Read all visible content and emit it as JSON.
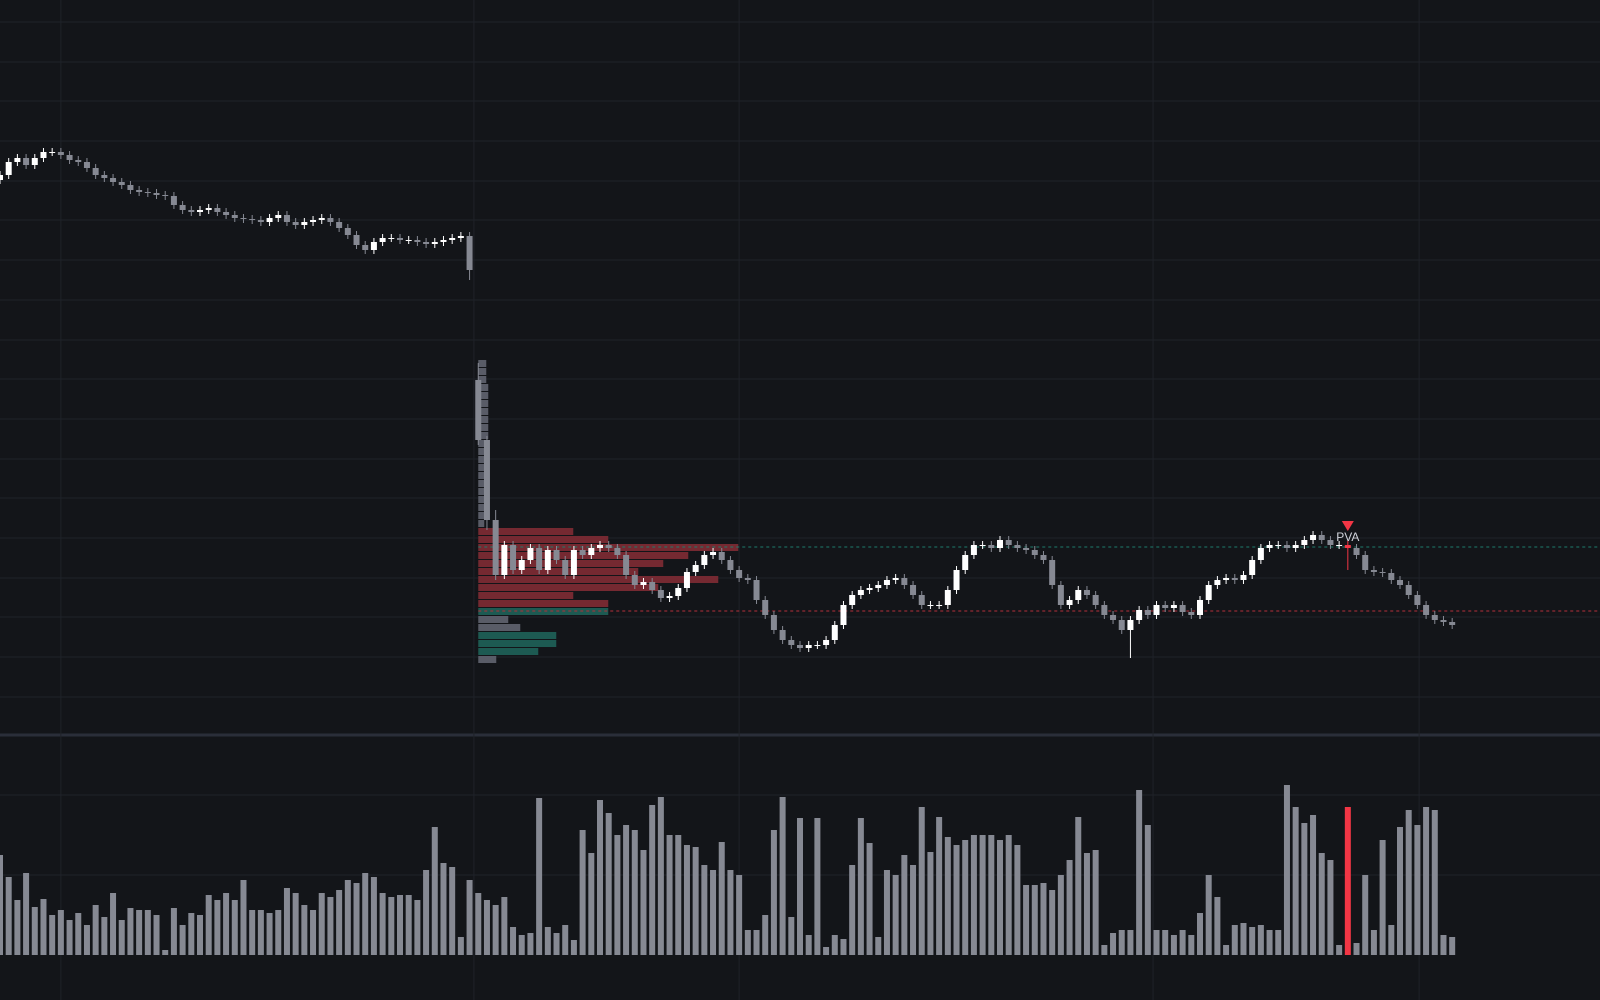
{
  "chart_data": {
    "type": "candlestick",
    "xlim": [
      0,
      184
    ],
    "xticks": [
      7,
      54.5,
      85,
      132.6,
      163.2
    ],
    "ylim": [
      267,
      1000
    ],
    "yticks": [
      978,
      938,
      899,
      859,
      819,
      780,
      740,
      700,
      660,
      621,
      581,
      541,
      502,
      462,
      422,
      383,
      343,
      303
    ],
    "grid": true,
    "up_color": "#ffffff",
    "down_color": "#868993",
    "open": [
      820,
      825,
      838,
      842,
      835,
      842,
      848,
      848,
      845,
      840,
      838,
      832,
      825,
      822,
      818,
      815,
      810,
      808,
      807,
      805,
      804,
      795,
      790,
      788,
      790,
      792,
      788,
      785,
      782,
      781,
      780,
      778,
      782,
      785,
      778,
      775,
      778,
      780,
      782,
      778,
      772,
      765,
      755,
      750,
      758,
      762,
      762,
      760,
      760,
      758,
      756,
      758,
      760,
      762,
      764,
      620,
      560,
      480,
      425,
      455,
      430,
      440,
      452,
      430,
      450,
      440,
      425,
      450,
      445,
      452,
      455,
      452,
      445,
      425,
      415,
      418,
      410,
      402,
      404,
      412,
      428,
      435,
      445,
      448,
      440,
      430,
      422,
      420,
      400,
      385,
      370,
      360,
      355,
      352,
      355,
      355,
      360,
      375,
      395,
      405,
      410,
      412,
      415,
      420,
      422,
      415,
      405,
      395,
      395,
      395,
      410,
      430,
      445,
      455,
      455,
      452,
      460,
      455,
      452,
      450,
      445,
      440,
      415,
      395,
      400,
      410,
      405,
      395,
      385,
      380,
      370,
      380,
      390,
      385,
      395,
      392,
      395,
      388,
      385,
      400,
      415,
      420,
      422,
      420,
      425,
      440,
      452,
      455,
      455,
      452,
      455,
      460,
      465,
      460,
      455,
      455,
      452,
      445,
      430,
      428,
      427,
      420,
      415,
      405,
      395,
      385,
      380,
      378
    ],
    "high": [
      829,
      842,
      846,
      846,
      846,
      852,
      852,
      852,
      849,
      844,
      842,
      836,
      829,
      826,
      822,
      819,
      814,
      812,
      811,
      809,
      808,
      799,
      794,
      794,
      796,
      796,
      792,
      789,
      786,
      785,
      784,
      786,
      789,
      789,
      782,
      782,
      784,
      786,
      786,
      782,
      776,
      769,
      759,
      762,
      766,
      766,
      766,
      764,
      764,
      762,
      762,
      764,
      766,
      768,
      768,
      637,
      564,
      490,
      459,
      459,
      444,
      456,
      456,
      454,
      454,
      444,
      454,
      454,
      456,
      459,
      459,
      456,
      449,
      429,
      422,
      422,
      414,
      408,
      416,
      432,
      439,
      449,
      452,
      452,
      444,
      434,
      426,
      424,
      404,
      389,
      374,
      364,
      359,
      359,
      359,
      364,
      379,
      399,
      409,
      414,
      416,
      419,
      424,
      426,
      426,
      419,
      409,
      399,
      399,
      414,
      434,
      449,
      459,
      459,
      459,
      464,
      464,
      459,
      456,
      454,
      449,
      444,
      419,
      404,
      414,
      414,
      409,
      399,
      389,
      384,
      384,
      394,
      394,
      399,
      399,
      399,
      399,
      392,
      404,
      419,
      424,
      426,
      426,
      429,
      444,
      456,
      459,
      459,
      459,
      459,
      464,
      469,
      469,
      464,
      459,
      459,
      456,
      449,
      434,
      432,
      431,
      424,
      419,
      409,
      399,
      389,
      384,
      382
    ],
    "low": [
      816,
      821,
      834,
      831,
      831,
      838,
      844,
      841,
      836,
      834,
      828,
      821,
      818,
      814,
      811,
      806,
      804,
      803,
      801,
      800,
      791,
      786,
      784,
      784,
      786,
      784,
      781,
      778,
      777,
      776,
      774,
      774,
      778,
      774,
      771,
      771,
      774,
      776,
      774,
      768,
      761,
      751,
      746,
      746,
      754,
      758,
      756,
      756,
      754,
      752,
      752,
      754,
      756,
      758,
      720,
      555,
      470,
      420,
      421,
      426,
      426,
      436,
      426,
      426,
      436,
      421,
      421,
      441,
      441,
      448,
      448,
      441,
      421,
      411,
      411,
      406,
      398,
      398,
      400,
      408,
      424,
      431,
      441,
      436,
      426,
      418,
      416,
      396,
      381,
      366,
      356,
      351,
      348,
      348,
      351,
      351,
      356,
      371,
      391,
      401,
      406,
      408,
      411,
      416,
      411,
      401,
      391,
      391,
      391,
      391,
      406,
      426,
      441,
      451,
      448,
      448,
      451,
      448,
      446,
      441,
      436,
      411,
      391,
      391,
      396,
      401,
      391,
      381,
      376,
      366,
      342,
      376,
      381,
      381,
      388,
      388,
      384,
      381,
      381,
      396,
      411,
      416,
      416,
      416,
      421,
      436,
      448,
      451,
      448,
      448,
      451,
      456,
      456,
      451,
      451,
      430,
      441,
      426,
      424,
      423,
      416,
      411,
      401,
      391,
      381,
      376,
      374,
      371
    ],
    "close": [
      825,
      838,
      842,
      835,
      842,
      848,
      848,
      845,
      840,
      838,
      832,
      825,
      822,
      818,
      815,
      810,
      808,
      807,
      805,
      804,
      795,
      790,
      788,
      790,
      792,
      788,
      785,
      782,
      781,
      780,
      778,
      782,
      785,
      778,
      775,
      778,
      780,
      782,
      778,
      772,
      765,
      755,
      750,
      758,
      762,
      762,
      760,
      760,
      758,
      756,
      758,
      760,
      762,
      764,
      730,
      560,
      480,
      425,
      455,
      430,
      440,
      452,
      430,
      450,
      440,
      425,
      450,
      445,
      452,
      455,
      452,
      445,
      425,
      415,
      418,
      410,
      402,
      404,
      412,
      428,
      435,
      445,
      448,
      440,
      430,
      422,
      420,
      400,
      385,
      370,
      360,
      355,
      352,
      355,
      355,
      360,
      375,
      395,
      405,
      410,
      412,
      415,
      420,
      422,
      415,
      405,
      395,
      395,
      395,
      410,
      430,
      445,
      455,
      455,
      452,
      460,
      455,
      452,
      450,
      445,
      440,
      415,
      395,
      400,
      410,
      405,
      395,
      385,
      380,
      370,
      380,
      390,
      385,
      395,
      392,
      395,
      388,
      385,
      400,
      415,
      420,
      422,
      420,
      425,
      440,
      452,
      455,
      455,
      452,
      455,
      460,
      465,
      460,
      455,
      455,
      452,
      445,
      430,
      428,
      427,
      420,
      415,
      405,
      395,
      385,
      380,
      378,
      375
    ],
    "annotation": {
      "text": "PVA",
      "x": 155,
      "color": "#f23645"
    },
    "levels": [
      {
        "value": 453,
        "color": "#1e7a6b"
      },
      {
        "value": 389,
        "color": "#b3303a"
      }
    ],
    "profile": {
      "anchor": 55,
      "levels": [
        636,
        628,
        620,
        612,
        604,
        596,
        588,
        580,
        572,
        564,
        556,
        548,
        540,
        532,
        524,
        516,
        508,
        500,
        492,
        484,
        476,
        468,
        460,
        452,
        444,
        436,
        428,
        420,
        412,
        404,
        396,
        388,
        380,
        372,
        364,
        356,
        348,
        340
      ],
      "values": [
        8,
        8,
        8,
        10,
        10,
        10,
        10,
        10,
        10,
        10,
        10,
        8,
        8,
        8,
        8,
        8,
        8,
        8,
        8,
        8,
        6,
        95,
        130,
        260,
        210,
        185,
        160,
        240,
        180,
        95,
        130,
        130,
        30,
        42,
        78,
        78,
        60,
        18
      ],
      "colors": [
        "#5d606b",
        "#5d606b",
        "#5d606b",
        "#5d606b",
        "#5d606b",
        "#5d606b",
        "#5d606b",
        "#5d606b",
        "#5d606b",
        "#5d606b",
        "#5d606b",
        "#5d606b",
        "#5d606b",
        "#5d606b",
        "#5d606b",
        "#5d606b",
        "#5d606b",
        "#5d606b",
        "#5d606b",
        "#5d606b",
        "#5d606b",
        "#7a2a33",
        "#7a2a33",
        "#7a2a33",
        "#7a2a33",
        "#7a2a33",
        "#7a2a33",
        "#7a2a33",
        "#7a2a33",
        "#7a2a33",
        "#7a2a33",
        "#1e5e55",
        "#5d606b",
        "#5d606b",
        "#1e5e55",
        "#1e5e55",
        "#1e5e55",
        "#5d606b"
      ]
    },
    "volume": {
      "ylim": [
        0,
        217
      ],
      "yticks": [
        80,
        160
      ],
      "color": "#868993",
      "highlight_color": "#f23645",
      "values": [
        100,
        78,
        55,
        82,
        48,
        56,
        40,
        45,
        35,
        42,
        30,
        50,
        38,
        62,
        35,
        47,
        45,
        45,
        40,
        5,
        47,
        30,
        42,
        40,
        60,
        55,
        62,
        55,
        75,
        45,
        45,
        42,
        45,
        67,
        62,
        50,
        45,
        62,
        58,
        65,
        75,
        72,
        82,
        78,
        62,
        58,
        60,
        60,
        55,
        85,
        128,
        92,
        88,
        18,
        75,
        62,
        55,
        50,
        58,
        28,
        20,
        22,
        157,
        28,
        22,
        30,
        15,
        125,
        102,
        155,
        142,
        120,
        130,
        125,
        105,
        150,
        158,
        120,
        120,
        110,
        108,
        90,
        85,
        113,
        85,
        80,
        25,
        25,
        40,
        125,
        158,
        38,
        137,
        20,
        137,
        8,
        20,
        16,
        90,
        137,
        112,
        18,
        85,
        80,
        100,
        90,
        148,
        103,
        138,
        118,
        110,
        115,
        120,
        120,
        120,
        115,
        120,
        110,
        70,
        70,
        72,
        65,
        80,
        95,
        138,
        102,
        105,
        10,
        22,
        25,
        25,
        165,
        130,
        25,
        25,
        20,
        25,
        20,
        42,
        80,
        58,
        10,
        30,
        32,
        28,
        30,
        25,
        25,
        170,
        148,
        132,
        140,
        102,
        95,
        10,
        148,
        12,
        80,
        25,
        115,
        30,
        128,
        145,
        130,
        148,
        145,
        20,
        18
      ]
    }
  }
}
